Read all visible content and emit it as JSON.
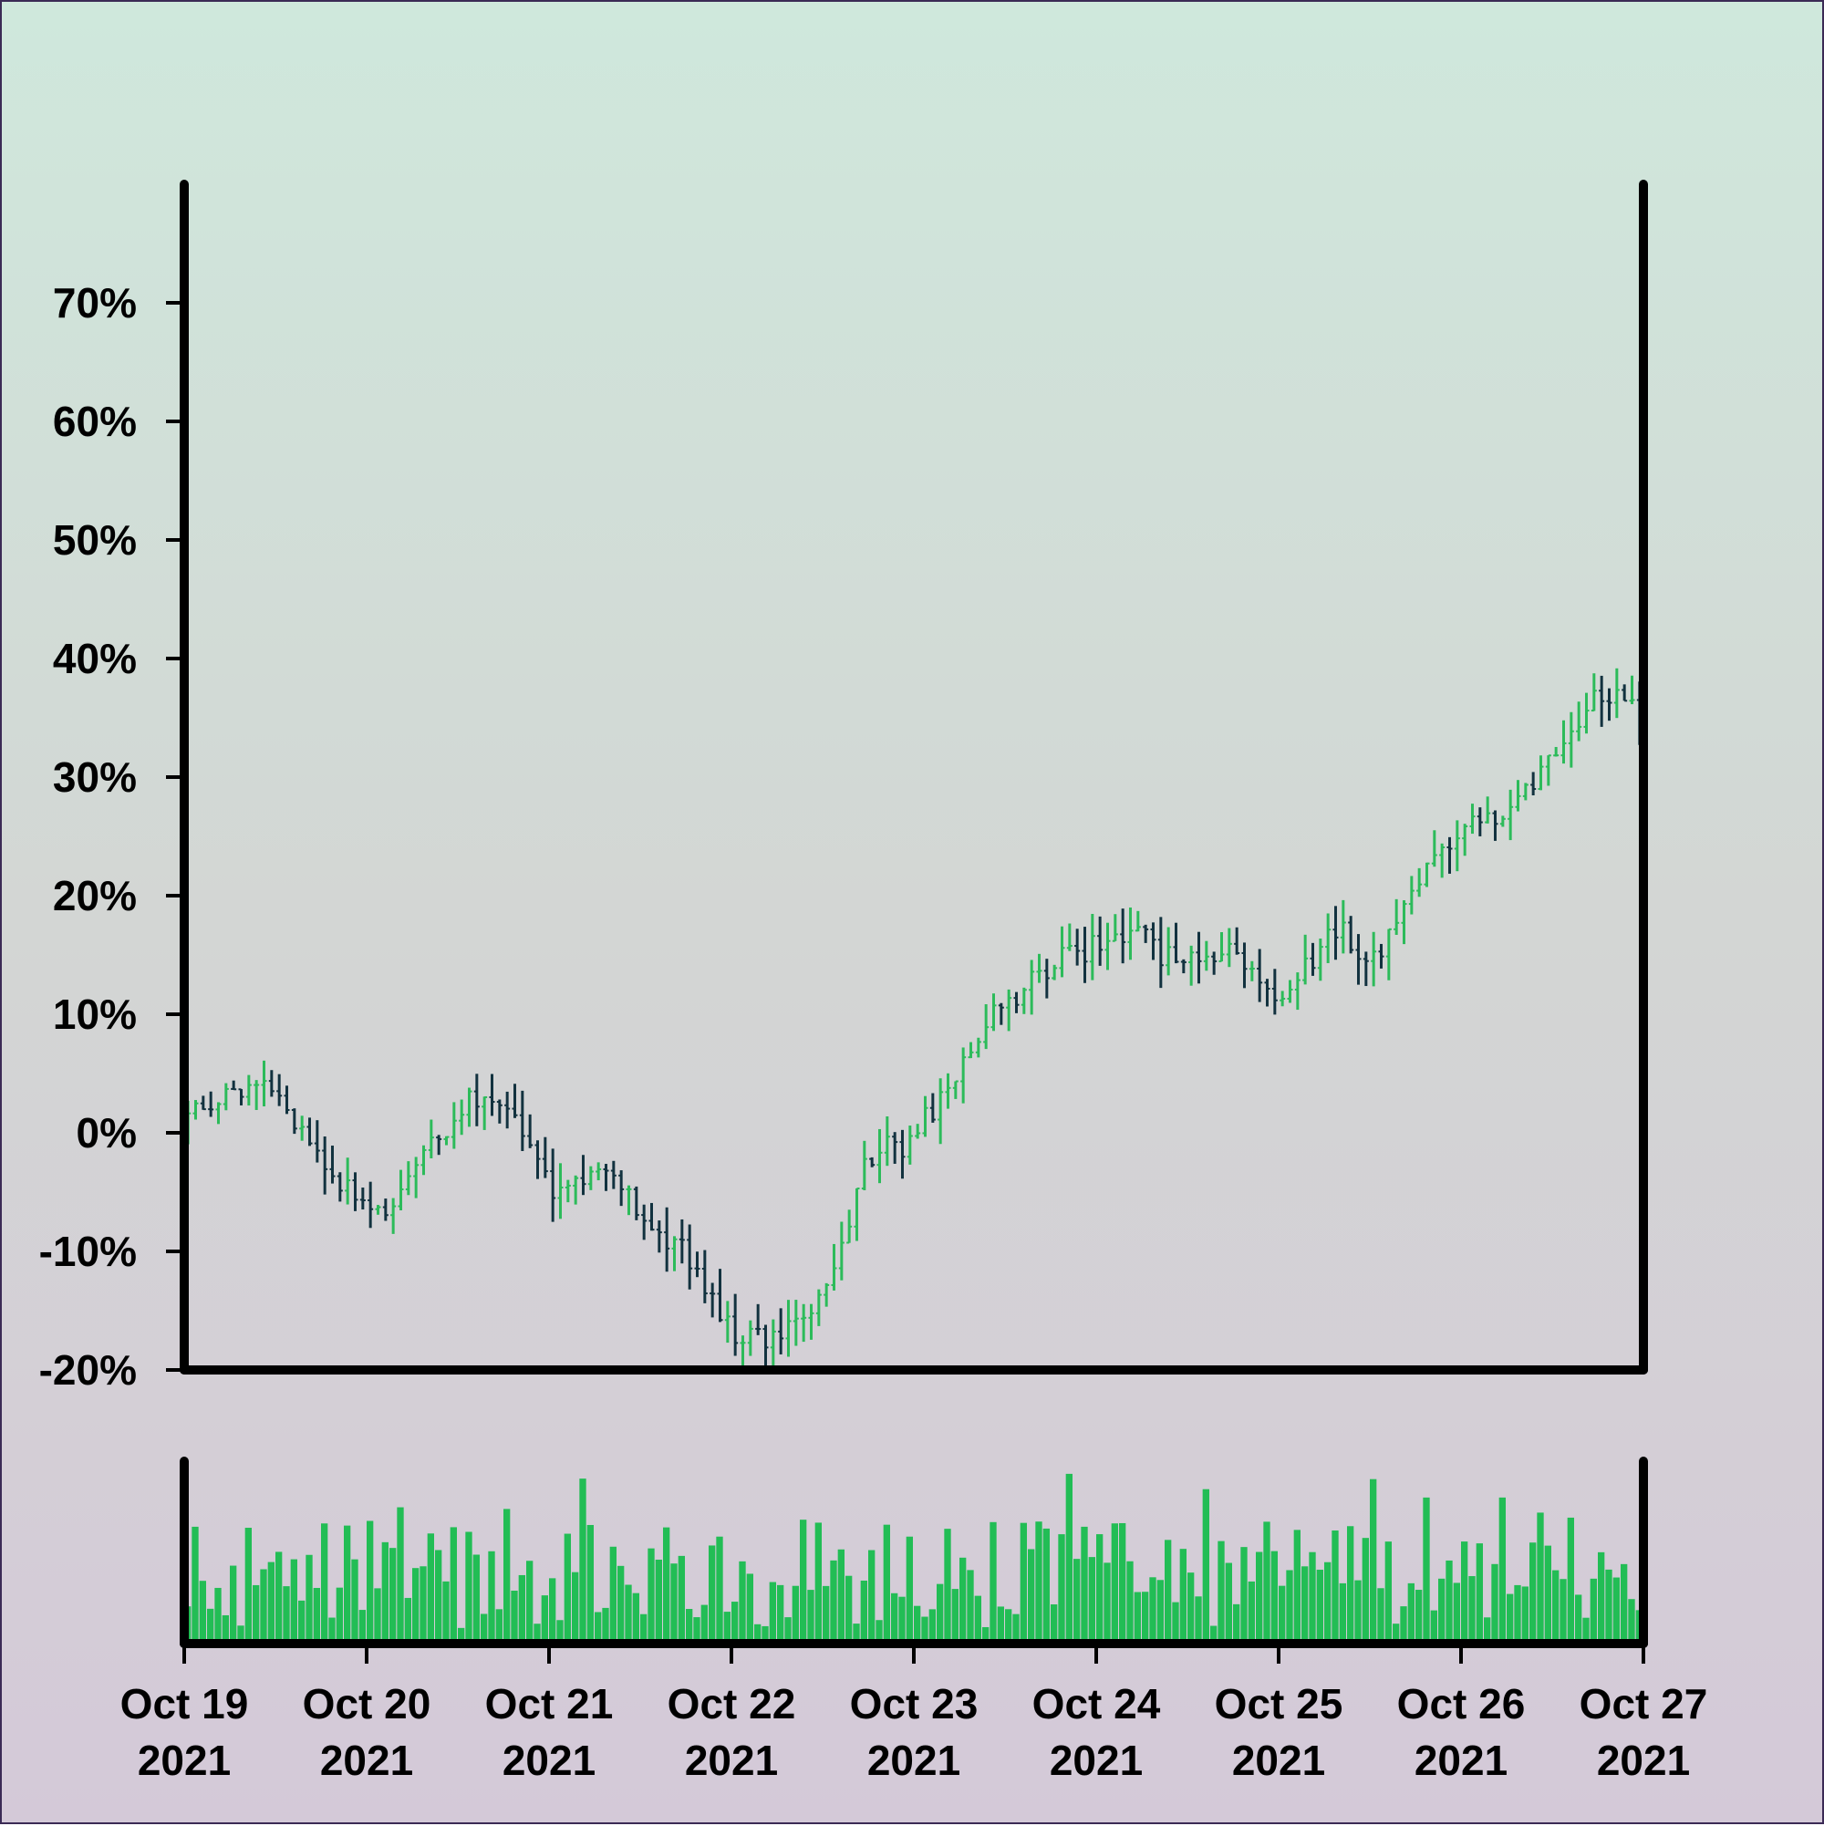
{
  "chart_data": {
    "type": "ohlc",
    "title": "",
    "xlabel": "",
    "ylabel": "",
    "colors": {
      "up": "#2cbb5a",
      "down": "#12323f",
      "volume": "#22bd55",
      "axis": "#000000"
    },
    "price_axis": {
      "ylim": [
        -20,
        80
      ],
      "ticks": [
        -20,
        -10,
        0,
        10,
        20,
        30,
        40,
        50,
        60,
        70
      ],
      "tick_labels": [
        "-20%",
        "-10%",
        "0%",
        "10%",
        "20%",
        "30%",
        "40%",
        "50%",
        "60%",
        "70%"
      ]
    },
    "volume_axis": {
      "ylim": [
        0,
        100
      ]
    },
    "x_axis": {
      "start": "2021-10-19",
      "end": "2021-10-27",
      "tick_dates": [
        "2021-10-19",
        "2021-10-20",
        "2021-10-21",
        "2021-10-22",
        "2021-10-23",
        "2021-10-24",
        "2021-10-25",
        "2021-10-26",
        "2021-10-27"
      ],
      "tick_labels": [
        [
          "Oct 19",
          "2021"
        ],
        [
          "Oct 20",
          "2021"
        ],
        [
          "Oct 21",
          "2021"
        ],
        [
          "Oct 22",
          "2021"
        ],
        [
          "Oct 23",
          "2021"
        ],
        [
          "Oct 24",
          "2021"
        ],
        [
          "Oct 25",
          "2021"
        ],
        [
          "Oct 26",
          "2021"
        ],
        [
          "Oct 27",
          "2021"
        ]
      ]
    },
    "grid": false,
    "legend": "none",
    "close_trend": [
      [
        "2021-10-19",
        1
      ],
      [
        "2021-10-19 06:00",
        4
      ],
      [
        "2021-10-19 12:00",
        3
      ],
      [
        "2021-10-19 18:00",
        -3
      ],
      [
        "2021-10-20",
        -7
      ],
      [
        "2021-10-20 06:00",
        -3
      ],
      [
        "2021-10-20 12:00",
        3
      ],
      [
        "2021-10-20 18:00",
        1
      ],
      [
        "2021-10-21",
        -5
      ],
      [
        "2021-10-21 06:00",
        -3
      ],
      [
        "2021-10-21 12:00",
        -6
      ],
      [
        "2021-10-21 18:00",
        -11
      ],
      [
        "2021-10-22",
        -17
      ],
      [
        "2021-10-22 06:00",
        -18
      ],
      [
        "2021-10-22 12:00",
        -12
      ],
      [
        "2021-10-22 18:00",
        -2
      ],
      [
        "2021-10-23",
        0
      ],
      [
        "2021-10-23 06:00",
        7
      ],
      [
        "2021-10-23 12:00",
        11
      ],
      [
        "2021-10-23 18:00",
        14
      ],
      [
        "2021-10-24",
        17
      ],
      [
        "2021-10-24 06:00",
        16
      ],
      [
        "2021-10-24 12:00",
        14
      ],
      [
        "2021-10-24 18:00",
        15
      ],
      [
        "2021-10-25",
        11
      ],
      [
        "2021-10-25 06:00",
        17
      ],
      [
        "2021-10-25 12:00",
        15
      ],
      [
        "2021-10-25 18:00",
        21
      ],
      [
        "2021-10-26",
        28
      ],
      [
        "2021-10-26 06:00",
        27
      ],
      [
        "2021-10-26 12:00",
        32
      ],
      [
        "2021-10-26 18:00",
        37
      ],
      [
        "2021-10-27",
        36
      ]
    ]
  }
}
